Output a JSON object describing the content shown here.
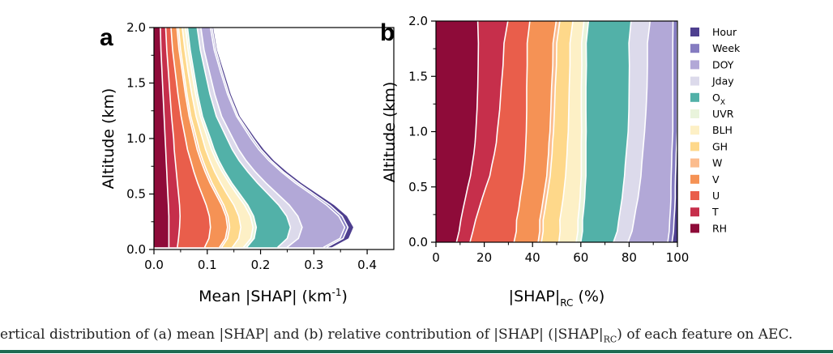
{
  "layers": [
    {
      "name": "RH",
      "color": "#8e0b39"
    },
    {
      "name": "T",
      "color": "#c62f4b"
    },
    {
      "name": "U",
      "color": "#e95e4b"
    },
    {
      "name": "V",
      "color": "#f59255"
    },
    {
      "name": "W",
      "color": "#fbbc8e"
    },
    {
      "name": "GH",
      "color": "#fed88a"
    },
    {
      "name": "BLH",
      "color": "#fdf0c6"
    },
    {
      "name": "UVR",
      "color": "#e9f4dc"
    },
    {
      "name": "O",
      "color": "#52b1a8"
    },
    {
      "name": "Jday",
      "color": "#dcdaeb"
    },
    {
      "name": "DOY",
      "color": "#b2a8d7"
    },
    {
      "name": "Week",
      "color": "#857cc1"
    },
    {
      "name": "Hour",
      "color": "#4e3f8f"
    }
  ],
  "legend_order": [
    "Hour",
    "Week",
    "DOY",
    "Jday",
    "O",
    "UVR",
    "BLH",
    "GH",
    "W",
    "V",
    "U",
    "T",
    "RH"
  ],
  "legend_sub": {
    "O": "X"
  },
  "panel_a": {
    "label": "a",
    "ylabel": "Altitude (km)",
    "xlabel": "Mean |SHAP| (km",
    "xlabel_sup": "-1",
    "xlabel_tail": ")",
    "xticks": [
      "0.0",
      "0.1",
      "0.2",
      "0.3",
      "0.4"
    ],
    "yticks": [
      "0.0",
      "0.5",
      "1.0",
      "1.5",
      "2.0"
    ]
  },
  "panel_b": {
    "label": "b",
    "ylabel": "Altitude (km)",
    "xlabel": "|SHAP|",
    "xlabel_sub": "RC",
    "xlabel_tail": " (%)",
    "xticks": [
      "0",
      "20",
      "40",
      "60",
      "80",
      "100"
    ],
    "yticks": [
      "0.0",
      "0.5",
      "1.0",
      "1.5",
      "2.0"
    ]
  },
  "caption": {
    "text_a": "ertical distribution of (a) mean |SHAP| and (b) relative contribution of |SHAP| (|SHAP|",
    "sub": "RC",
    "text_b": ") of each feature on AEC."
  },
  "chart_data": [
    {
      "type": "area",
      "title": "",
      "xlabel": "Mean |SHAP| (km-1)",
      "ylabel": "Altitude (km)",
      "xlim": [
        0,
        0.45
      ],
      "ylim": [
        0,
        2.0
      ],
      "orientation": "horizontal-stacked",
      "y": [
        0.02,
        0.1,
        0.2,
        0.3,
        0.4,
        0.5,
        0.6,
        0.7,
        0.8,
        0.9,
        1.0,
        1.2,
        1.4,
        1.6,
        1.8,
        2.0
      ],
      "series": [
        {
          "name": "RH",
          "values": [
            0.028,
            0.028,
            0.028,
            0.028,
            0.027,
            0.026,
            0.025,
            0.024,
            0.023,
            0.022,
            0.021,
            0.019,
            0.017,
            0.015,
            0.013,
            0.012
          ]
        },
        {
          "name": "T",
          "values": [
            0.016,
            0.018,
            0.02,
            0.021,
            0.021,
            0.02,
            0.019,
            0.018,
            0.017,
            0.016,
            0.016,
            0.014,
            0.013,
            0.012,
            0.011,
            0.01
          ]
        },
        {
          "name": "U",
          "values": [
            0.051,
            0.057,
            0.058,
            0.055,
            0.05,
            0.044,
            0.038,
            0.033,
            0.029,
            0.025,
            0.022,
            0.018,
            0.015,
            0.013,
            0.011,
            0.01
          ]
        },
        {
          "name": "V",
          "values": [
            0.028,
            0.031,
            0.032,
            0.031,
            0.029,
            0.026,
            0.023,
            0.021,
            0.019,
            0.018,
            0.017,
            0.015,
            0.014,
            0.013,
            0.012,
            0.011
          ]
        },
        {
          "name": "W",
          "values": [
            0.004,
            0.004,
            0.004,
            0.004,
            0.004,
            0.004,
            0.004,
            0.004,
            0.004,
            0.004,
            0.004,
            0.003,
            0.003,
            0.003,
            0.003,
            0.003
          ]
        },
        {
          "name": "GH",
          "values": [
            0.02,
            0.021,
            0.021,
            0.02,
            0.019,
            0.017,
            0.016,
            0.014,
            0.013,
            0.012,
            0.011,
            0.01,
            0.009,
            0.008,
            0.008,
            0.007
          ]
        },
        {
          "name": "BLH",
          "values": [
            0.021,
            0.023,
            0.023,
            0.022,
            0.02,
            0.018,
            0.016,
            0.014,
            0.012,
            0.011,
            0.01,
            0.008,
            0.007,
            0.007,
            0.006,
            0.006
          ]
        },
        {
          "name": "UVR",
          "values": [
            0.006,
            0.006,
            0.006,
            0.006,
            0.006,
            0.006,
            0.005,
            0.005,
            0.005,
            0.005,
            0.005,
            0.004,
            0.004,
            0.004,
            0.004,
            0.004
          ]
        },
        {
          "name": "O",
          "values": [
            0.058,
            0.062,
            0.064,
            0.062,
            0.058,
            0.053,
            0.048,
            0.043,
            0.038,
            0.034,
            0.031,
            0.026,
            0.023,
            0.021,
            0.019,
            0.018
          ]
        },
        {
          "name": "Jday",
          "values": [
            0.018,
            0.021,
            0.022,
            0.021,
            0.02,
            0.018,
            0.016,
            0.014,
            0.013,
            0.012,
            0.011,
            0.01,
            0.009,
            0.008,
            0.007,
            0.007
          ]
        },
        {
          "name": "DOY",
          "values": [
            0.068,
            0.078,
            0.08,
            0.077,
            0.07,
            0.063,
            0.055,
            0.049,
            0.043,
            0.038,
            0.034,
            0.028,
            0.024,
            0.021,
            0.019,
            0.018
          ]
        },
        {
          "name": "Week",
          "values": [
            0.006,
            0.006,
            0.006,
            0.006,
            0.006,
            0.005,
            0.005,
            0.004,
            0.004,
            0.004,
            0.004,
            0.003,
            0.003,
            0.003,
            0.003,
            0.003
          ]
        },
        {
          "name": "Hour",
          "values": [
            0.01,
            0.01,
            0.01,
            0.009,
            0.008,
            0.007,
            0.006,
            0.006,
            0.005,
            0.005,
            0.004,
            0.003,
            0.003,
            0.003,
            0.002,
            0.002
          ]
        }
      ]
    },
    {
      "type": "area",
      "title": "",
      "xlabel": "|SHAP|RC (%)",
      "ylabel": "Altitude (km)",
      "xlim": [
        0,
        100
      ],
      "ylim": [
        0,
        2.0
      ],
      "orientation": "horizontal-stacked",
      "y": [
        0.0,
        0.1,
        0.2,
        0.3,
        0.4,
        0.5,
        0.6,
        0.7,
        0.8,
        0.9,
        1.0,
        1.2,
        1.4,
        1.6,
        1.8,
        2.0
      ],
      "series": [
        {
          "name": "RH",
          "values": [
            8.5,
            9.6,
            10.3,
            11.2,
            12.2,
            13.2,
            14.3,
            15.0,
            15.7,
            16.2,
            16.5,
            17.0,
            17.3,
            17.5,
            17.6,
            17.3
          ]
        },
        {
          "name": "T",
          "values": [
            5.6,
            5.7,
            6.1,
            6.6,
            7.0,
            7.5,
            8.0,
            8.2,
            8.5,
            8.8,
            8.9,
            9.4,
            9.7,
            10.3,
            10.6,
            12.5
          ]
        },
        {
          "name": "U",
          "values": [
            18.2,
            18.0,
            17.0,
            16.5,
            15.7,
            14.9,
            14.0,
            13.5,
            12.8,
            12.2,
            12.0,
            11.2,
            10.6,
            10.0,
            9.6,
            9.1
          ]
        },
        {
          "name": "V",
          "values": [
            10.0,
            9.7,
            9.6,
            9.5,
            9.6,
            9.6,
            9.6,
            9.5,
            9.6,
            9.6,
            9.8,
            10.0,
            10.3,
            10.6,
            10.7,
            10.9
          ]
        },
        {
          "name": "W",
          "values": [
            1.4,
            1.4,
            1.4,
            1.4,
            1.4,
            1.4,
            1.4,
            1.5,
            1.5,
            1.5,
            1.5,
            1.5,
            1.5,
            1.5,
            1.5,
            1.5
          ]
        },
        {
          "name": "GH",
          "values": [
            7.2,
            7.0,
            6.9,
            6.8,
            6.8,
            6.6,
            6.4,
            6.3,
            6.2,
            6.2,
            6.1,
            5.9,
            5.8,
            5.6,
            5.5,
            5.4
          ]
        },
        {
          "name": "BLH",
          "values": [
            7.2,
            7.4,
            7.5,
            7.3,
            7.0,
            6.7,
            6.5,
            6.2,
            5.9,
            5.7,
            5.5,
            5.2,
            5.0,
            4.9,
            4.8,
            4.6
          ]
        },
        {
          "name": "UVR",
          "values": [
            1.9,
            1.9,
            1.9,
            1.9,
            1.9,
            1.9,
            1.9,
            1.9,
            1.9,
            1.9,
            1.9,
            1.9,
            1.9,
            1.9,
            1.9,
            1.9
          ]
        },
        {
          "name": "O",
          "values": [
            13.5,
            14.4,
            15.0,
            15.2,
            15.5,
            15.8,
            16.0,
            16.3,
            16.7,
            17.1,
            17.4,
            17.8,
            17.9,
            17.8,
            17.7,
            17.6
          ]
        },
        {
          "name": "Jday",
          "values": [
            6.0,
            6.1,
            6.3,
            6.4,
            6.6,
            6.7,
            6.8,
            6.8,
            6.8,
            6.8,
            6.8,
            7.1,
            7.4,
            7.5,
            7.7,
            7.9
          ]
        },
        {
          "name": "DOY",
          "values": [
            16.5,
            15.4,
            14.8,
            14.3,
            13.6,
            13.0,
            12.5,
            12.4,
            12.1,
            11.9,
            11.7,
            11.1,
            10.7,
            10.5,
            10.5,
            9.5
          ]
        },
        {
          "name": "Week",
          "values": [
            1.8,
            1.8,
            1.8,
            1.8,
            1.8,
            1.8,
            1.8,
            1.8,
            1.8,
            1.8,
            1.8,
            1.8,
            1.8,
            1.8,
            1.8,
            1.8
          ]
        },
        {
          "name": "Hour",
          "values": [
            2.2,
            1.6,
            1.4,
            1.1,
            0.9,
            1.1,
            0.7,
            0.6,
            0.5,
            0.3,
            0.1,
            0.1,
            0.1,
            0.1,
            0.0,
            0.0
          ]
        }
      ]
    }
  ]
}
